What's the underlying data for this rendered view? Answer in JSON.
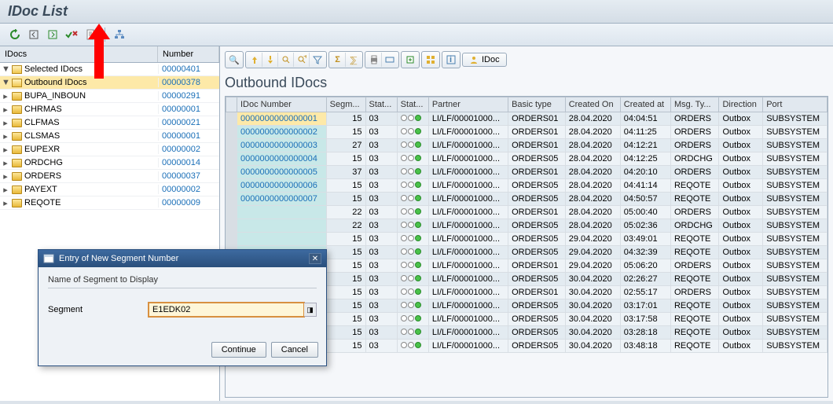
{
  "title": "IDoc List",
  "treeHeader": {
    "idocs": "IDocs",
    "number": "Number"
  },
  "tree": [
    {
      "level": 1,
      "toggle": "▼",
      "icon": "open",
      "label": "Selected IDocs",
      "num": "00000401",
      "selected": false,
      "name": "tree-selected-idocs"
    },
    {
      "level": 2,
      "toggle": "▼",
      "icon": "open",
      "label": "Outbound IDocs",
      "num": "00000378",
      "selected": true,
      "name": "tree-outbound-idocs"
    },
    {
      "level": 3,
      "toggle": "▸",
      "icon": "yellow",
      "label": "BUPA_INBOUN",
      "num": "00000291",
      "selected": false,
      "name": "tree-bupa"
    },
    {
      "level": 3,
      "toggle": "▸",
      "icon": "yellow",
      "label": "CHRMAS",
      "num": "00000001",
      "selected": false,
      "name": "tree-chrmas"
    },
    {
      "level": 3,
      "toggle": "▸",
      "icon": "yellow",
      "label": "CLFMAS",
      "num": "00000021",
      "selected": false,
      "name": "tree-clfmas"
    },
    {
      "level": 3,
      "toggle": "▸",
      "icon": "yellow",
      "label": "CLSMAS",
      "num": "00000001",
      "selected": false,
      "name": "tree-clsmas"
    },
    {
      "level": 3,
      "toggle": "▸",
      "icon": "yellow",
      "label": "EUPEXR",
      "num": "00000002",
      "selected": false,
      "name": "tree-eupexr"
    },
    {
      "level": 3,
      "toggle": "▸",
      "icon": "yellow",
      "label": "ORDCHG",
      "num": "00000014",
      "selected": false,
      "name": "tree-ordchg"
    },
    {
      "level": 3,
      "toggle": "▸",
      "icon": "yellow",
      "label": "ORDERS",
      "num": "00000037",
      "selected": false,
      "name": "tree-orders"
    },
    {
      "level": 3,
      "toggle": "▸",
      "icon": "yellow",
      "label": "PAYEXT",
      "num": "00000002",
      "selected": false,
      "name": "tree-payext"
    },
    {
      "level": 3,
      "toggle": "▸",
      "icon": "yellow",
      "label": "REQOTE",
      "num": "00000009",
      "selected": false,
      "name": "tree-reqote"
    }
  ],
  "sectionTitle": "Outbound IDocs",
  "columns": [
    "IDoc Number",
    "Segm...",
    "Stat...",
    "Stat...",
    "Partner",
    "Basic type",
    "Created On",
    "Created at",
    "Msg. Ty...",
    "Direction",
    "Port"
  ],
  "rows": [
    [
      "0000000000000001",
      "15",
      "03",
      "",
      "LI/LF/00001000...",
      "ORDERS01",
      "28.04.2020",
      "04:04:51",
      "ORDERS",
      "Outbox",
      "SUBSYSTEM"
    ],
    [
      "0000000000000002",
      "15",
      "03",
      "",
      "LI/LF/00001000...",
      "ORDERS01",
      "28.04.2020",
      "04:11:25",
      "ORDERS",
      "Outbox",
      "SUBSYSTEM"
    ],
    [
      "0000000000000003",
      "27",
      "03",
      "",
      "LI/LF/00001000...",
      "ORDERS01",
      "28.04.2020",
      "04:12:21",
      "ORDERS",
      "Outbox",
      "SUBSYSTEM"
    ],
    [
      "0000000000000004",
      "15",
      "03",
      "",
      "LI/LF/00001000...",
      "ORDERS05",
      "28.04.2020",
      "04:12:25",
      "ORDCHG",
      "Outbox",
      "SUBSYSTEM"
    ],
    [
      "0000000000000005",
      "37",
      "03",
      "",
      "LI/LF/00001000...",
      "ORDERS01",
      "28.04.2020",
      "04:20:10",
      "ORDERS",
      "Outbox",
      "SUBSYSTEM"
    ],
    [
      "0000000000000006",
      "15",
      "03",
      "",
      "LI/LF/00001000...",
      "ORDERS05",
      "28.04.2020",
      "04:41:14",
      "REQOTE",
      "Outbox",
      "SUBSYSTEM"
    ],
    [
      "0000000000000007",
      "15",
      "03",
      "",
      "LI/LF/00001000...",
      "ORDERS05",
      "28.04.2020",
      "04:50:57",
      "REQOTE",
      "Outbox",
      "SUBSYSTEM"
    ],
    [
      "",
      "22",
      "03",
      "",
      "LI/LF/00001000...",
      "ORDERS01",
      "28.04.2020",
      "05:00:40",
      "ORDERS",
      "Outbox",
      "SUBSYSTEM"
    ],
    [
      "",
      "22",
      "03",
      "",
      "LI/LF/00001000...",
      "ORDERS05",
      "28.04.2020",
      "05:02:36",
      "ORDCHG",
      "Outbox",
      "SUBSYSTEM"
    ],
    [
      "",
      "15",
      "03",
      "",
      "LI/LF/00001000...",
      "ORDERS05",
      "29.04.2020",
      "03:49:01",
      "REQOTE",
      "Outbox",
      "SUBSYSTEM"
    ],
    [
      "",
      "15",
      "03",
      "",
      "LI/LF/00001000...",
      "ORDERS05",
      "29.04.2020",
      "04:32:39",
      "REQOTE",
      "Outbox",
      "SUBSYSTEM"
    ],
    [
      "",
      "15",
      "03",
      "",
      "LI/LF/00001000...",
      "ORDERS01",
      "29.04.2020",
      "05:06:20",
      "ORDERS",
      "Outbox",
      "SUBSYSTEM"
    ],
    [
      "",
      "15",
      "03",
      "",
      "LI/LF/00001000...",
      "ORDERS05",
      "30.04.2020",
      "02:26:27",
      "REQOTE",
      "Outbox",
      "SUBSYSTEM"
    ],
    [
      "",
      "15",
      "03",
      "",
      "LI/LF/00001000...",
      "ORDERS01",
      "30.04.2020",
      "02:55:17",
      "ORDERS",
      "Outbox",
      "SUBSYSTEM"
    ],
    [
      "",
      "15",
      "03",
      "",
      "LI/LF/00001000...",
      "ORDERS05",
      "30.04.2020",
      "03:17:01",
      "REQOTE",
      "Outbox",
      "SUBSYSTEM"
    ],
    [
      "",
      "15",
      "03",
      "",
      "LI/LF/00001000...",
      "ORDERS05",
      "30.04.2020",
      "03:17:58",
      "REQOTE",
      "Outbox",
      "SUBSYSTEM"
    ],
    [
      "",
      "15",
      "03",
      "",
      "LI/LF/00001000...",
      "ORDERS05",
      "30.04.2020",
      "03:28:18",
      "REQOTE",
      "Outbox",
      "SUBSYSTEM"
    ],
    [
      "",
      "15",
      "03",
      "",
      "LI/LF/00001000...",
      "ORDERS05",
      "30.04.2020",
      "03:48:18",
      "REQOTE",
      "Outbox",
      "SUBSYSTEM"
    ]
  ],
  "idocBtn": "IDoc",
  "dialog": {
    "title": "Entry of New Segment Number",
    "subtitle": "Name of Segment to Display",
    "fieldLabel": "Segment",
    "value": "E1EDK02",
    "continue": "Continue",
    "cancel": "Cancel"
  }
}
